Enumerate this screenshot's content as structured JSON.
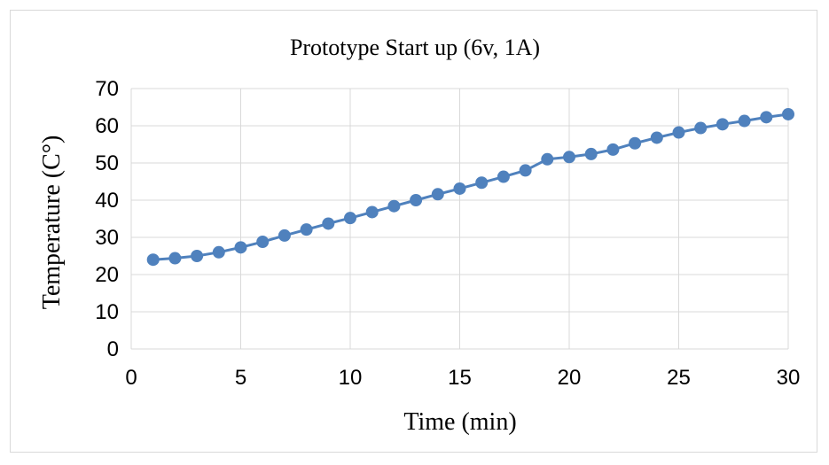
{
  "chart_data": {
    "type": "line",
    "title": "Prototype Start up (6v, 1A)",
    "xlabel": "Time (min)",
    "ylabel": "Temperature (C°)",
    "xlim": [
      0,
      30
    ],
    "ylim": [
      0,
      70
    ],
    "xticks": [
      0,
      5,
      10,
      15,
      20,
      25,
      30
    ],
    "yticks": [
      0,
      10,
      20,
      30,
      40,
      50,
      60,
      70
    ],
    "grid": true,
    "legend": "none",
    "series": [
      {
        "color": "#4f81bd",
        "marker": "circle",
        "x": [
          1,
          2,
          3,
          4,
          5,
          6,
          7,
          8,
          9,
          10,
          11,
          12,
          13,
          14,
          15,
          16,
          17,
          18,
          19,
          20,
          21,
          22,
          23,
          24,
          25,
          26,
          27,
          28,
          29,
          30
        ],
        "y": [
          24,
          24.4,
          25,
          26,
          27.3,
          28.8,
          30.5,
          32.1,
          33.7,
          35.2,
          36.8,
          38.4,
          40,
          41.6,
          43.1,
          44.7,
          46.3,
          48,
          51,
          51.6,
          52.4,
          53.6,
          55.3,
          56.8,
          58.2,
          59.4,
          60.4,
          61.3,
          62.3,
          63.1
        ]
      }
    ]
  }
}
